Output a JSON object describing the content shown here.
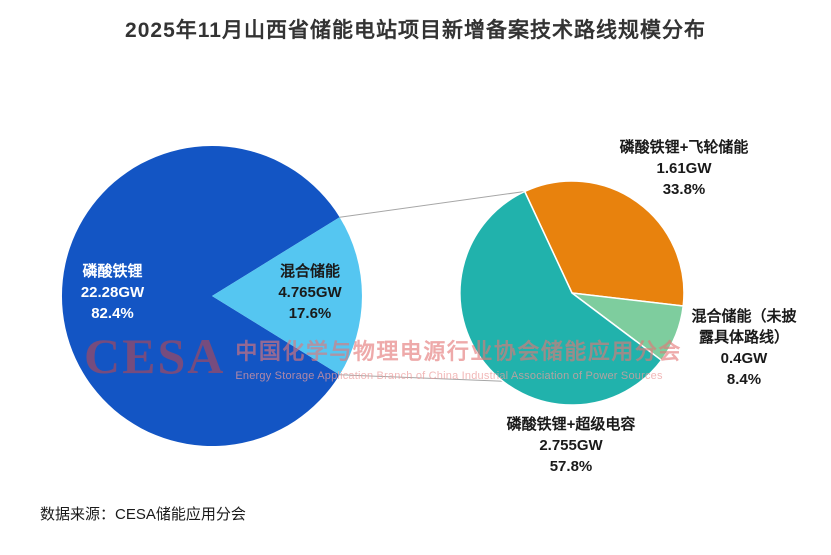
{
  "title": "2025年11月山西省储能电站项目新增备案技术路线规模分布",
  "source_note": "数据来源：CESA储能应用分会",
  "watermark": {
    "logo_text": "CESA",
    "cn_text": "中国化学与物理电源行业协会储能应用分会",
    "en_text": "Energy Storage Application Branch of China Industrial Association of Power Sources"
  },
  "chart_data": {
    "type": "pie",
    "subtype": "pie-of-pie",
    "unit": "GW",
    "main_pie": {
      "slices": [
        {
          "label": "磷酸铁锂",
          "value_gw": 22.28,
          "value_label": "22.28GW",
          "percent": 82.4,
          "percent_label": "82.4%",
          "color": "#1355c4",
          "label_color": "#ffffff"
        },
        {
          "label": "混合储能",
          "value_gw": 4.765,
          "value_label": "4.765GW",
          "percent": 17.6,
          "percent_label": "17.6%",
          "color": "#55c6f1",
          "label_color": "#1a1a1a",
          "expanded_to_secondary": true
        }
      ]
    },
    "secondary_pie": {
      "slices": [
        {
          "label": "磷酸铁锂+飞轮储能",
          "value_gw": 1.61,
          "value_label": "1.61GW",
          "percent": 33.8,
          "percent_label": "33.8%",
          "color": "#e8820d"
        },
        {
          "label": "混合储能（未披露具体路线）",
          "label_lines": [
            "混合储能（未披",
            "露具体路线）"
          ],
          "value_gw": 0.4,
          "value_label": "0.4GW",
          "percent": 8.4,
          "percent_label": "8.4%",
          "color": "#7ecd9e"
        },
        {
          "label": "磷酸铁锂+超级电容",
          "value_gw": 2.755,
          "value_label": "2.755GW",
          "percent": 57.8,
          "percent_label": "57.8%",
          "color": "#21b2ac"
        }
      ]
    },
    "layout": {
      "legend": false,
      "main_labels": "inside",
      "secondary_labels": "outside",
      "connector_lines": true
    }
  }
}
